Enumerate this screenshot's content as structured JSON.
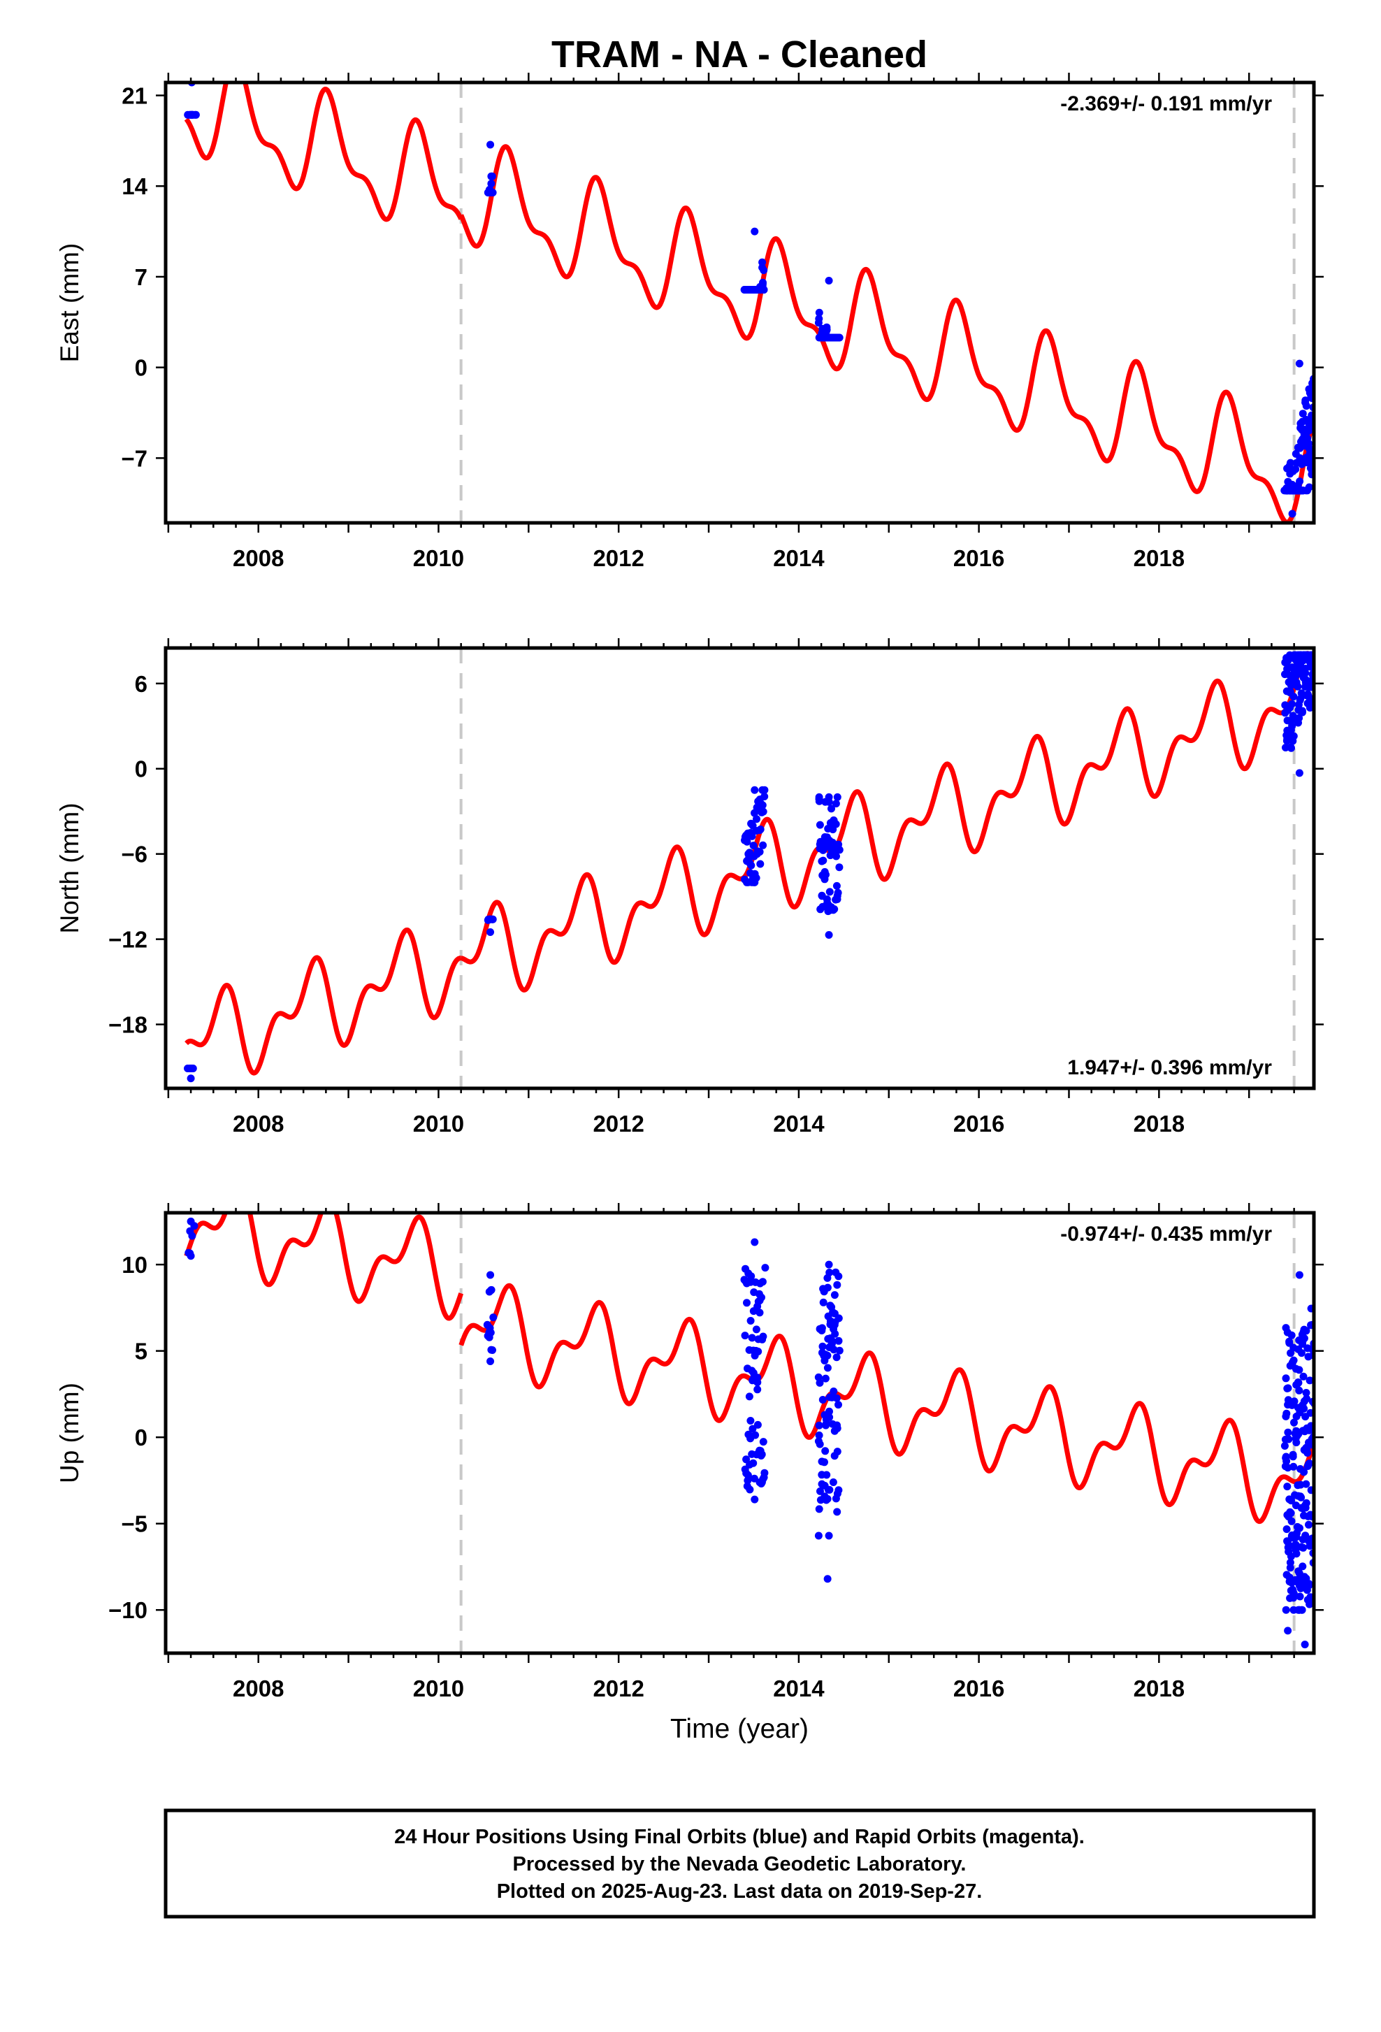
{
  "title": "TRAM  - NA - Cleaned",
  "footer": {
    "line1": "24 Hour Positions Using Final Orbits (blue) and Rapid Orbits (magenta).",
    "line2": "Processed by the Nevada Geodetic Laboratory.",
    "line3": "Plotted on 2025-Aug-23. Last data on 2019-Sep-27."
  },
  "colors": {
    "data_points": "#0000ff",
    "model": "#ff0000",
    "offset_lines": "#c8c8c8",
    "frame": "#000000"
  },
  "chart_data": [
    {
      "type": "scatter",
      "panel": "east",
      "ylabel": "East (mm)",
      "rate": "-2.369+/- 0.191 mm/yr",
      "xlim": [
        2006.97,
        2019.72
      ],
      "ylim": [
        -12,
        22
      ],
      "xticks": [
        2008,
        2010,
        2012,
        2014,
        2016,
        2018
      ],
      "yticks": [
        21,
        14,
        7,
        0,
        -7
      ],
      "offsets": [
        2010.25,
        2019.5
      ],
      "trend": {
        "rate": -2.369,
        "t0": 2007.2,
        "v0": 20.4,
        "annual_amp": 3.4,
        "semiannual_amp": 1.6,
        "annual_phase": 0.55,
        "semiannual_phase": 0.1,
        "steps": [
          {
            "t": 2010.25,
            "d": 0.3
          }
        ]
      },
      "clusters": [
        {
          "t0": 2007.22,
          "t1": 2007.3,
          "n": 10,
          "lo": 19.5,
          "hi": 22
        },
        {
          "t0": 2010.55,
          "t1": 2010.6,
          "n": 12,
          "lo": 13.5,
          "hi": 17.2
        },
        {
          "t0": 2013.4,
          "t1": 2013.62,
          "n": 60,
          "lo": 6,
          "hi": 10.5
        },
        {
          "t0": 2014.22,
          "t1": 2014.45,
          "n": 60,
          "lo": 2.3,
          "hi": 6.7
        },
        {
          "t0": 2019.4,
          "t1": 2019.72,
          "n": 140,
          "lo": -9.5,
          "hi": 0.3
        }
      ],
      "outliers": [
        {
          "t": 2019.48,
          "v": -11.3
        }
      ]
    },
    {
      "type": "scatter",
      "panel": "north",
      "ylabel": "North (mm)",
      "rate": "1.947+/- 0.396 mm/yr",
      "xlim": [
        2006.97,
        2019.72
      ],
      "ylim": [
        -22.5,
        8.5
      ],
      "xticks": [
        2008,
        2010,
        2012,
        2014,
        2016,
        2018
      ],
      "yticks": [
        6,
        0,
        -6,
        -12,
        -18
      ],
      "offsets": [
        2010.25,
        2019.5
      ],
      "trend": {
        "rate": 1.947,
        "t0": 2007.2,
        "v0": -19.5,
        "annual_amp": 2.3,
        "semiannual_amp": 1.6,
        "annual_phase": 0.3,
        "semiannual_phase": 0.05,
        "steps": [
          {
            "t": 2010.25,
            "d": 0.0
          }
        ]
      },
      "clusters": [
        {
          "t0": 2007.22,
          "t1": 2007.28,
          "n": 5,
          "lo": -21.8,
          "hi": -21.1
        },
        {
          "t0": 2010.55,
          "t1": 2010.6,
          "n": 8,
          "lo": -11.5,
          "hi": -10.6
        },
        {
          "t0": 2013.4,
          "t1": 2013.62,
          "n": 50,
          "lo": -8,
          "hi": -1.5
        },
        {
          "t0": 2014.22,
          "t1": 2014.45,
          "n": 60,
          "lo": -11.7,
          "hi": -2
        },
        {
          "t0": 2019.4,
          "t1": 2019.72,
          "n": 140,
          "lo": -0.3,
          "hi": 8
        }
      ],
      "outliers": []
    },
    {
      "type": "scatter",
      "panel": "up",
      "ylabel": "Up (mm)",
      "rate": "-0.974+/- 0.435 mm/yr",
      "xlim": [
        2006.97,
        2019.72
      ],
      "ylim": [
        -12.5,
        13
      ],
      "xticks": [
        2008,
        2010,
        2012,
        2014,
        2016,
        2018
      ],
      "yticks": [
        10,
        5,
        0,
        -5,
        -10
      ],
      "offsets": [
        2010.25,
        2019.5
      ],
      "trend": {
        "rate": -0.974,
        "t0": 2007.2,
        "v0": 12.5,
        "annual_amp": 2.0,
        "semiannual_amp": 1.2,
        "annual_phase": 0.45,
        "semiannual_phase": 0.2,
        "steps": [
          {
            "t": 2010.25,
            "d": -3.0
          }
        ]
      },
      "clusters": [
        {
          "t0": 2007.22,
          "t1": 2007.28,
          "n": 5,
          "lo": 10.5,
          "hi": 12.5
        },
        {
          "t0": 2010.55,
          "t1": 2010.6,
          "n": 12,
          "lo": 4.4,
          "hi": 9.4
        },
        {
          "t0": 2013.4,
          "t1": 2013.62,
          "n": 70,
          "lo": -3.6,
          "hi": 11.3
        },
        {
          "t0": 2014.22,
          "t1": 2014.45,
          "n": 90,
          "lo": -5.7,
          "hi": 10
        },
        {
          "t0": 2019.4,
          "t1": 2019.72,
          "n": 200,
          "lo": -10,
          "hi": 9.4
        }
      ],
      "outliers": [
        {
          "t": 2014.32,
          "v": -8.2
        },
        {
          "t": 2019.43,
          "v": -11.2
        },
        {
          "t": 2019.62,
          "v": -12.0
        }
      ]
    }
  ],
  "xlabel": "Time (year)"
}
